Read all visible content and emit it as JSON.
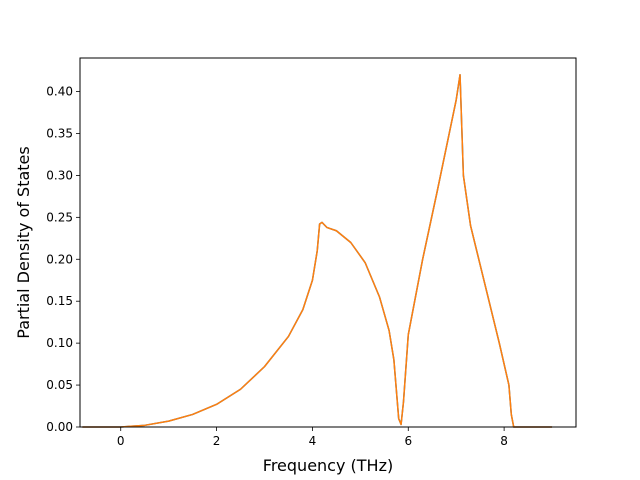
{
  "chart_data": {
    "type": "line",
    "title": "",
    "xlabel": "Frequency (THz)",
    "ylabel": "Partial Density of States",
    "xlim": [
      -0.85,
      9.5
    ],
    "ylim": [
      0.0,
      0.44
    ],
    "xticks": [
      0,
      2,
      4,
      6,
      8
    ],
    "yticks": [
      0.0,
      0.05,
      0.1,
      0.15,
      0.2,
      0.25,
      0.3,
      0.35,
      0.4
    ],
    "xtick_labels": [
      "0",
      "2",
      "4",
      "6",
      "8"
    ],
    "ytick_labels": [
      "0.00",
      "0.05",
      "0.10",
      "0.15",
      "0.20",
      "0.25",
      "0.30",
      "0.35",
      "0.40"
    ],
    "grid": false,
    "legend": "none",
    "series": [
      {
        "color": "#1f77b4",
        "x": [
          -0.8,
          0.0,
          0.5,
          1.0,
          1.5,
          2.0,
          2.5,
          3.0,
          3.5,
          3.8,
          4.0,
          4.1,
          4.15,
          4.2,
          4.3,
          4.5,
          4.8,
          5.1,
          5.4,
          5.6,
          5.7,
          5.75,
          5.8,
          5.85,
          5.9,
          6.0,
          6.3,
          6.6,
          7.0,
          7.08,
          7.15,
          7.3,
          7.6,
          7.9,
          8.1,
          8.15,
          8.2,
          8.5,
          9.0
        ],
        "y": [
          0.0,
          0.0,
          0.002,
          0.007,
          0.015,
          0.027,
          0.045,
          0.072,
          0.108,
          0.14,
          0.175,
          0.21,
          0.242,
          0.244,
          0.238,
          0.234,
          0.22,
          0.196,
          0.155,
          0.115,
          0.08,
          0.045,
          0.01,
          0.003,
          0.03,
          0.11,
          0.2,
          0.28,
          0.39,
          0.42,
          0.3,
          0.24,
          0.17,
          0.1,
          0.05,
          0.015,
          0.0,
          0.0,
          0.0
        ]
      },
      {
        "color": "#ff7f0e",
        "x": [
          -0.8,
          0.0,
          0.5,
          1.0,
          1.5,
          2.0,
          2.5,
          3.0,
          3.5,
          3.8,
          4.0,
          4.1,
          4.15,
          4.2,
          4.3,
          4.5,
          4.8,
          5.1,
          5.4,
          5.6,
          5.7,
          5.75,
          5.8,
          5.85,
          5.9,
          6.0,
          6.3,
          6.6,
          7.0,
          7.08,
          7.15,
          7.3,
          7.6,
          7.9,
          8.1,
          8.15,
          8.2,
          8.5,
          9.0
        ],
        "y": [
          0.0,
          0.0,
          0.002,
          0.007,
          0.015,
          0.027,
          0.045,
          0.072,
          0.108,
          0.14,
          0.175,
          0.21,
          0.242,
          0.244,
          0.238,
          0.234,
          0.22,
          0.196,
          0.155,
          0.115,
          0.08,
          0.045,
          0.01,
          0.003,
          0.03,
          0.11,
          0.2,
          0.28,
          0.39,
          0.42,
          0.3,
          0.24,
          0.17,
          0.1,
          0.05,
          0.015,
          0.0,
          0.0,
          0.0
        ]
      }
    ]
  }
}
